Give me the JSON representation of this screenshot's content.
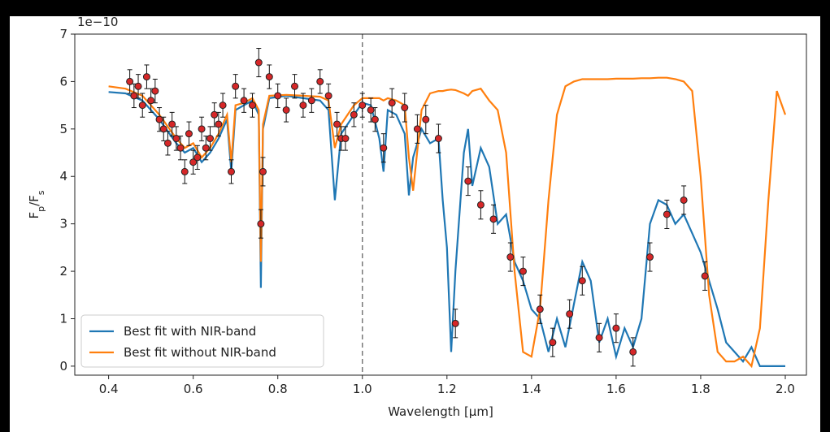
{
  "chart_data": {
    "type": "line",
    "multiplier": "1e−10",
    "xlabel": "Wavelength [μm]",
    "ylabel": [
      "F",
      "p",
      "/F",
      "s"
    ],
    "xlim": [
      0.32,
      2.05
    ],
    "ylim": [
      -0.19,
      7
    ],
    "xticks": [
      0.4,
      0.6,
      0.8,
      {
        "value": 1,
        "label": "1.0"
      },
      1.2,
      1.4,
      1.6,
      1.8,
      {
        "value": 2,
        "label": "2.0"
      }
    ],
    "yticks": [
      0,
      1,
      2,
      3,
      4,
      5,
      6,
      7
    ],
    "vline": 1.0,
    "legend": "lower left",
    "x": [
      0.4,
      0.44,
      0.48,
      0.52,
      0.56,
      0.58,
      0.6,
      0.62,
      0.64,
      0.66,
      0.68,
      0.69,
      0.7,
      0.72,
      0.74,
      0.755,
      0.76,
      0.765,
      0.78,
      0.82,
      0.86,
      0.9,
      0.92,
      0.935,
      0.95,
      0.98,
      1.0,
      1.02,
      1.04,
      1.05,
      1.06,
      1.08,
      1.1,
      1.11,
      1.12,
      1.14,
      1.16,
      1.18,
      1.19,
      1.2,
      1.21,
      1.22,
      1.24,
      1.25,
      1.26,
      1.28,
      1.3,
      1.32,
      1.34,
      1.36,
      1.38,
      1.4,
      1.42,
      1.44,
      1.46,
      1.48,
      1.5,
      1.52,
      1.54,
      1.56,
      1.58,
      1.6,
      1.62,
      1.64,
      1.66,
      1.68,
      1.7,
      1.72,
      1.74,
      1.76,
      1.78,
      1.8,
      1.82,
      1.84,
      1.86,
      1.88,
      1.9,
      1.92,
      1.94,
      1.96,
      1.98,
      2.0
    ],
    "series": [
      {
        "name": "Best fit with NIR-band",
        "color": "#1f77b4",
        "values": [
          5.78,
          5.75,
          5.6,
          5.2,
          4.7,
          4.5,
          4.6,
          4.3,
          4.5,
          4.8,
          5.2,
          4.1,
          5.4,
          5.5,
          5.6,
          5.3,
          1.65,
          5.0,
          5.65,
          5.7,
          5.65,
          5.6,
          5.4,
          3.5,
          4.9,
          5.3,
          5.55,
          5.5,
          4.8,
          4.1,
          5.4,
          5.3,
          4.9,
          3.6,
          4.4,
          5.0,
          4.7,
          4.8,
          3.5,
          2.5,
          0.3,
          2.0,
          4.5,
          5.0,
          3.8,
          4.6,
          4.2,
          3.0,
          3.2,
          2.2,
          1.8,
          1.2,
          1.0,
          0.3,
          1.0,
          0.4,
          1.3,
          2.2,
          1.8,
          0.5,
          1.0,
          0.2,
          0.8,
          0.4,
          1.0,
          3.0,
          3.5,
          3.4,
          3.0,
          3.2,
          2.8,
          2.4,
          1.8,
          1.2,
          0.5,
          0.3,
          0.1,
          0.4,
          0.0,
          0.0,
          0.0,
          0.0
        ]
      },
      {
        "name": "Best fit without NIR-band",
        "color": "#ff7f0e",
        "values": [
          5.9,
          5.85,
          5.7,
          5.3,
          4.8,
          4.6,
          4.7,
          4.4,
          4.6,
          4.9,
          5.3,
          4.3,
          5.5,
          5.55,
          5.65,
          5.4,
          2.2,
          5.1,
          5.7,
          5.72,
          5.7,
          5.68,
          5.6,
          4.6,
          5.1,
          5.5,
          5.65,
          5.65,
          5.65,
          5.6,
          5.65,
          5.6,
          5.5,
          4.4,
          3.7,
          5.4,
          5.75,
          5.8,
          5.8,
          5.82,
          5.83,
          5.82,
          5.75,
          5.7,
          5.8,
          5.85,
          5.6,
          5.4,
          4.5,
          2.0,
          0.3,
          0.2,
          1.2,
          3.5,
          5.3,
          5.9,
          6.0,
          6.05,
          6.05,
          6.05,
          6.05,
          6.06,
          6.06,
          6.06,
          6.07,
          6.07,
          6.08,
          6.08,
          6.05,
          6.0,
          5.8,
          4.0,
          1.5,
          0.3,
          0.1,
          0.1,
          0.2,
          0.0,
          0.8,
          3.5,
          5.8,
          5.3
        ]
      }
    ],
    "points": {
      "color": "#d62728",
      "x": [
        0.45,
        0.46,
        0.47,
        0.48,
        0.49,
        0.5,
        0.51,
        0.52,
        0.53,
        0.54,
        0.55,
        0.56,
        0.57,
        0.58,
        0.59,
        0.6,
        0.61,
        0.62,
        0.63,
        0.64,
        0.65,
        0.66,
        0.67,
        0.69,
        0.7,
        0.72,
        0.74,
        0.755,
        0.76,
        0.765,
        0.78,
        0.8,
        0.82,
        0.84,
        0.86,
        0.88,
        0.9,
        0.92,
        0.94,
        0.95,
        0.96,
        0.98,
        1.0,
        1.02,
        1.03,
        1.05,
        1.07,
        1.1,
        1.13,
        1.15,
        1.18,
        1.22,
        1.25,
        1.28,
        1.31,
        1.35,
        1.38,
        1.42,
        1.45,
        1.49,
        1.52,
        1.56,
        1.6,
        1.64,
        1.68,
        1.72,
        1.76,
        1.81
      ],
      "values": [
        6.0,
        5.7,
        5.9,
        5.5,
        6.1,
        5.6,
        5.8,
        5.2,
        5.0,
        4.7,
        5.1,
        4.8,
        4.6,
        4.1,
        4.9,
        4.3,
        4.4,
        5.0,
        4.6,
        4.8,
        5.3,
        5.1,
        5.5,
        4.1,
        5.9,
        5.6,
        5.5,
        6.4,
        3.0,
        4.1,
        6.1,
        5.7,
        5.4,
        5.9,
        5.5,
        5.6,
        6.0,
        5.7,
        5.1,
        4.8,
        4.8,
        5.3,
        5.5,
        5.4,
        5.2,
        4.6,
        5.55,
        5.45,
        5.0,
        5.2,
        4.8,
        0.9,
        3.9,
        3.4,
        3.1,
        2.3,
        2.0,
        1.2,
        0.5,
        1.1,
        1.8,
        0.6,
        0.8,
        0.3,
        2.3,
        3.2,
        3.5,
        1.9
      ],
      "errors": [
        0.25,
        0.25,
        0.25,
        0.25,
        0.25,
        0.25,
        0.25,
        0.25,
        0.25,
        0.25,
        0.25,
        0.25,
        0.25,
        0.25,
        0.25,
        0.25,
        0.25,
        0.25,
        0.25,
        0.25,
        0.25,
        0.25,
        0.25,
        0.25,
        0.25,
        0.25,
        0.25,
        0.3,
        0.3,
        0.3,
        0.25,
        0.25,
        0.25,
        0.25,
        0.25,
        0.25,
        0.25,
        0.25,
        0.25,
        0.25,
        0.25,
        0.25,
        0.25,
        0.25,
        0.25,
        0.3,
        0.3,
        0.3,
        0.3,
        0.3,
        0.3,
        0.3,
        0.3,
        0.3,
        0.3,
        0.3,
        0.3,
        0.3,
        0.3,
        0.3,
        0.3,
        0.3,
        0.3,
        0.3,
        0.3,
        0.3,
        0.3,
        0.3
      ]
    }
  }
}
